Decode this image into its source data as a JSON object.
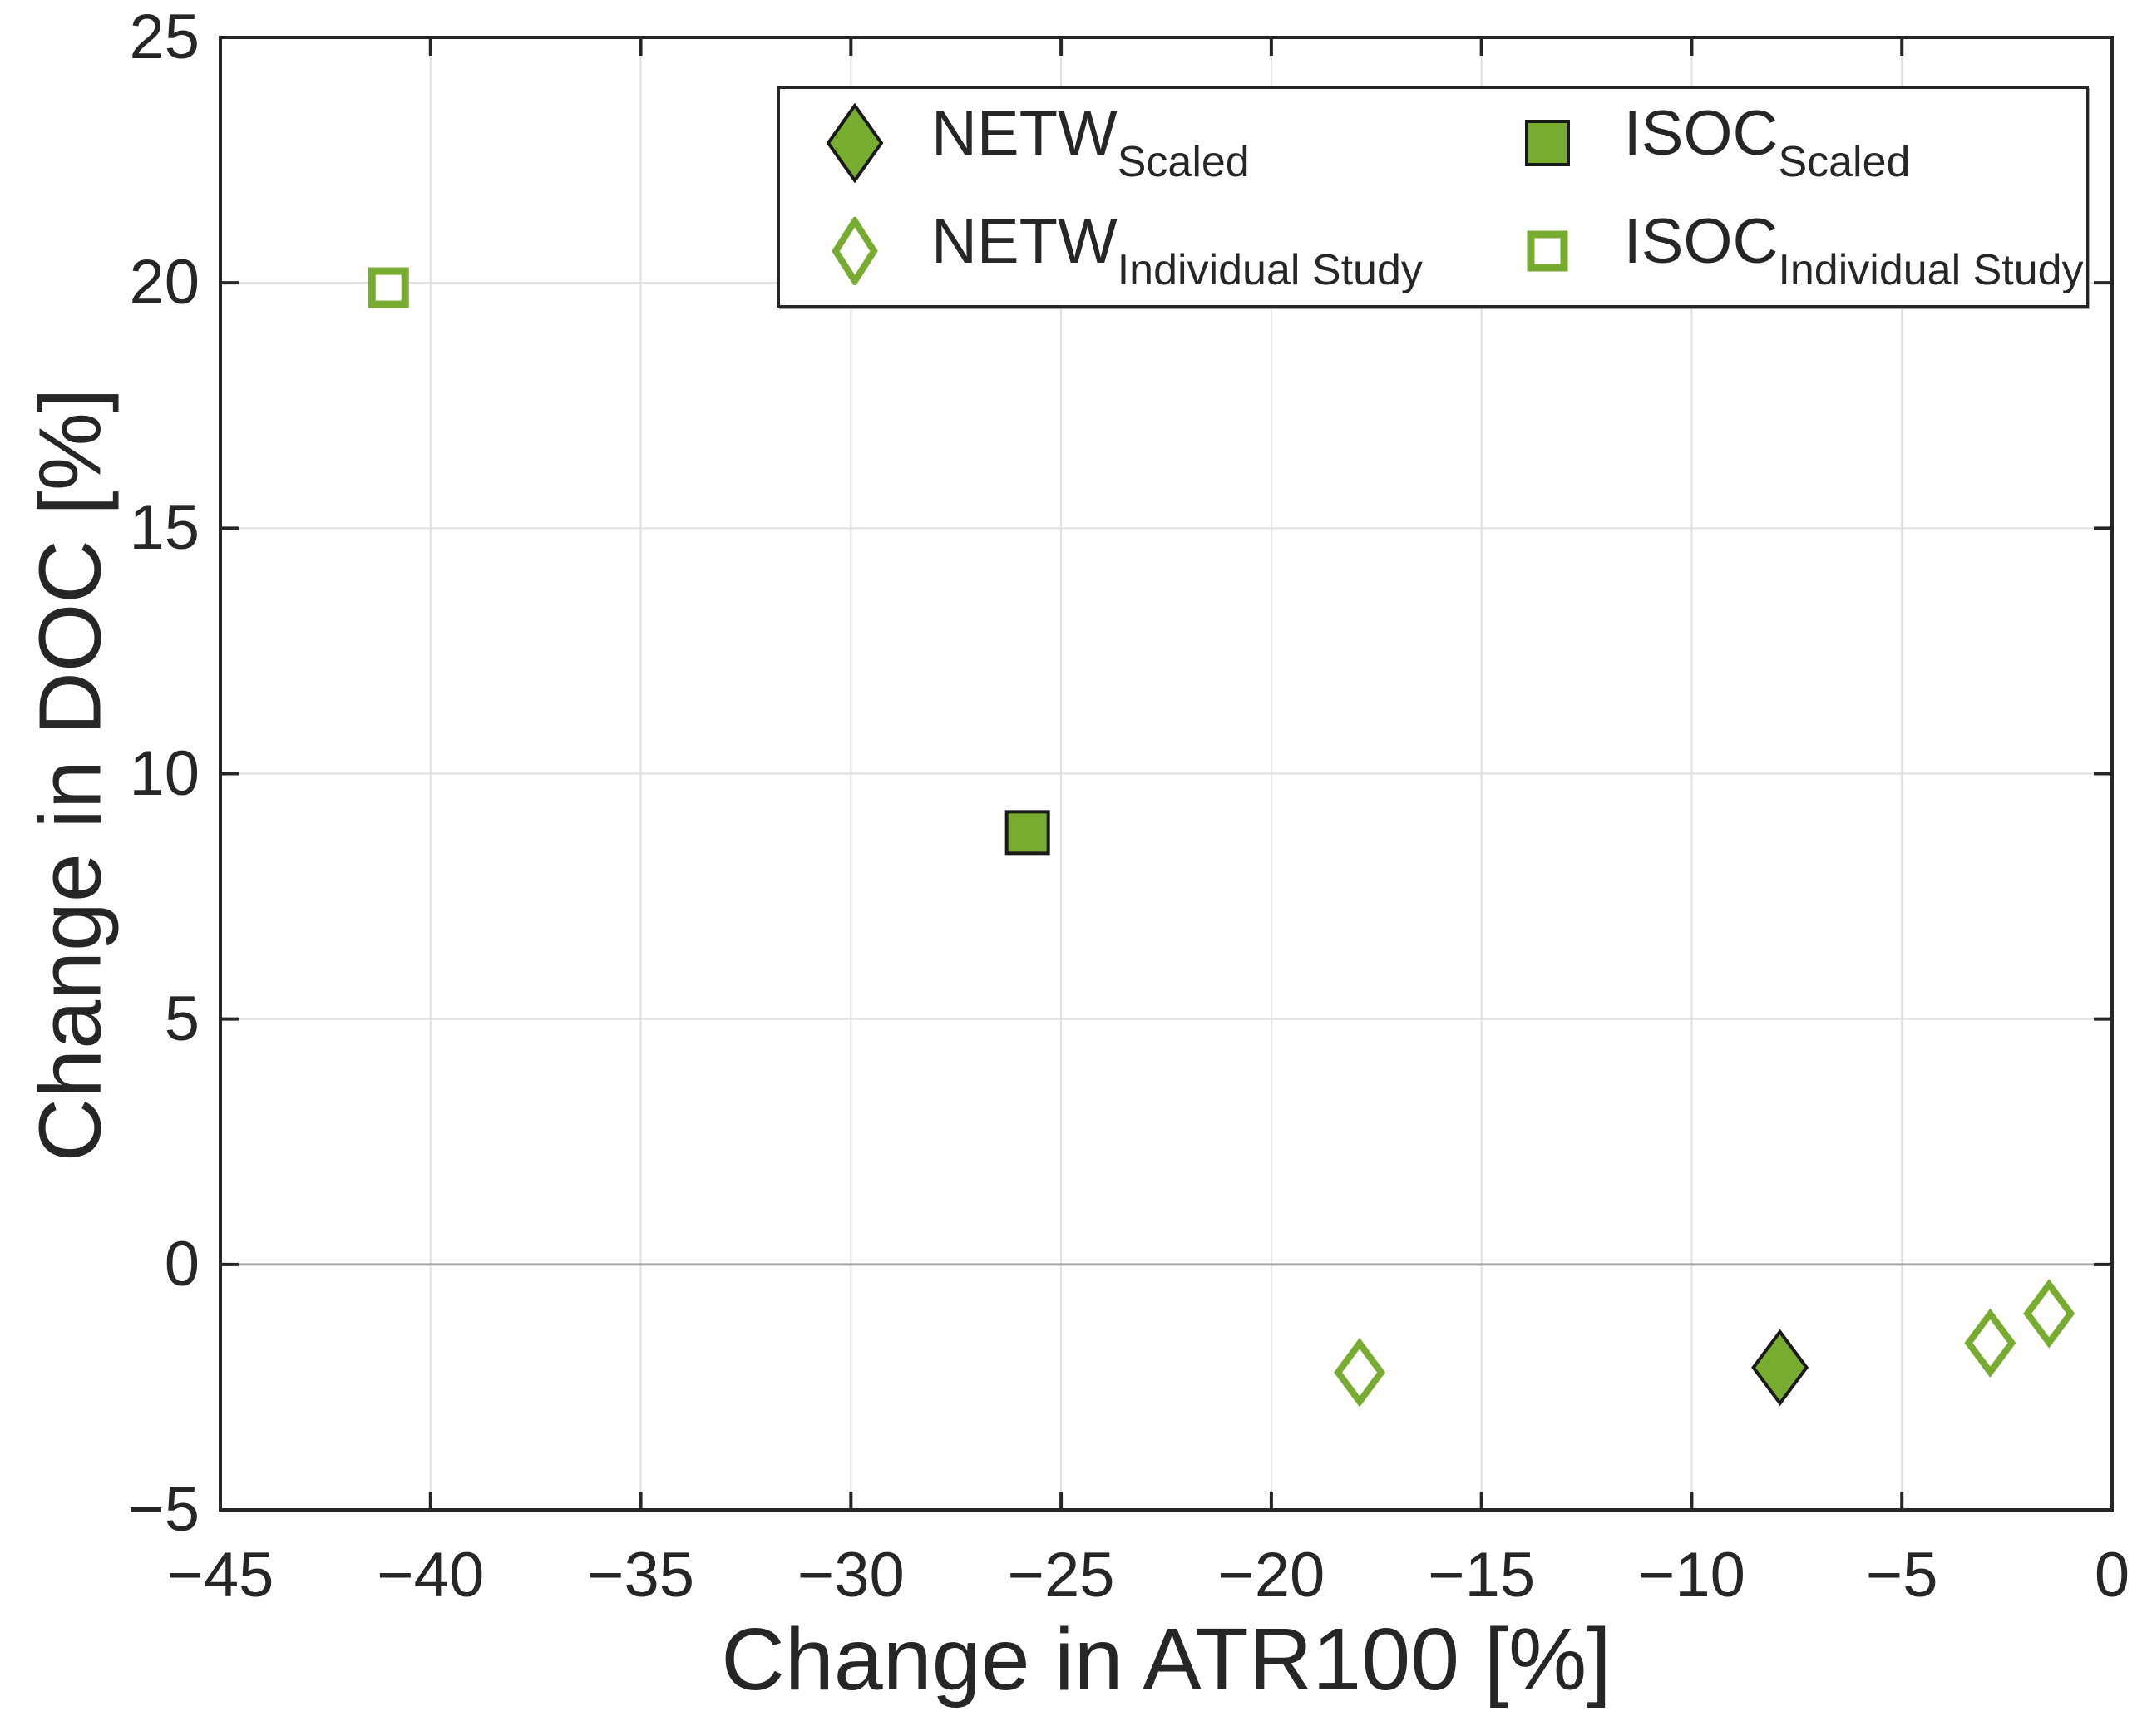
{
  "colors": {
    "marker_green": "#77ac30",
    "marker_edge": "#1a1a1a",
    "grid_line": "#e0e0e0",
    "zero_line": "#a6a6a6",
    "axis": "#262626",
    "text": "#262626"
  },
  "axes": {
    "xlabel": "Change in ATR100 [%]",
    "ylabel": "Change in DOC [%]"
  },
  "legend": {
    "entries": [
      {
        "main": "NETW",
        "sub": "Scaled",
        "marker": "diamond-filled"
      },
      {
        "main": "ISOC",
        "sub": "Scaled",
        "marker": "square-filled"
      },
      {
        "main": "NETW",
        "sub": "Individual Study",
        "marker": "diamond-open"
      },
      {
        "main": "ISOC",
        "sub": "Individual Study",
        "marker": "square-open"
      }
    ]
  },
  "chart_data": {
    "type": "scatter",
    "title": "",
    "xlabel": "Change in ATR100 [%]",
    "ylabel": "Change in DOC [%]",
    "xlim": [
      -45,
      0
    ],
    "ylim": [
      -5,
      25
    ],
    "xticks": [
      -45,
      -40,
      -35,
      -30,
      -25,
      -20,
      -15,
      -10,
      -5,
      0
    ],
    "yticks": [
      -5,
      0,
      5,
      10,
      15,
      20,
      25
    ],
    "xtick_labels": [
      "−45",
      "−40",
      "−35",
      "−30",
      "−25",
      "−20",
      "−15",
      "−10",
      "−5",
      "0"
    ],
    "ytick_labels": [
      "−5",
      "0",
      "5",
      "10",
      "15",
      "20",
      "25"
    ],
    "grid": true,
    "zero_line_y": 0,
    "legend_position": "top-center-inside",
    "series": [
      {
        "name": "NETW_Scaled",
        "marker": "diamond-filled",
        "points": [
          [
            -7.9,
            -2.1
          ]
        ]
      },
      {
        "name": "NETW_Individual Study",
        "marker": "diamond-open",
        "points": [
          [
            -17.9,
            -2.2
          ],
          [
            -2.9,
            -1.6
          ],
          [
            -1.5,
            -1.0
          ]
        ]
      },
      {
        "name": "ISOC_Scaled",
        "marker": "square-filled",
        "points": [
          [
            -25.8,
            8.8
          ]
        ]
      },
      {
        "name": "ISOC_Individual Study",
        "marker": "square-open",
        "points": [
          [
            -41.0,
            19.9
          ]
        ]
      }
    ]
  }
}
